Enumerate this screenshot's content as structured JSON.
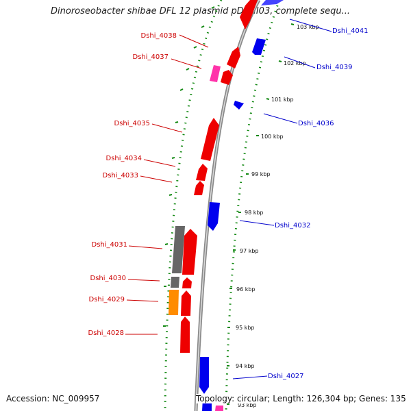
{
  "title": "Dinoroseobacter shibae DFL 12 plasmid pDSHI03, complete sequ...",
  "footer": {
    "accession": "Accession: NC_009957",
    "topology": "Topology: circular; Length: 126,304 bp; Genes: 135"
  },
  "colors": {
    "forward_gene": "#ee0000",
    "reverse_gene": "#0000ee",
    "pseudogene": "#666666",
    "rna_gene": "#ff33aa",
    "other_gene": "#ff8c00",
    "backbone": "#999999",
    "ruler": "#118811",
    "forward_label": "#cc0000",
    "reverse_label": "#0000cc"
  },
  "kbp_ticks": [
    "103 kbp",
    "102 kbp",
    "101 kbp",
    "100 kbp",
    "99 kbp",
    "98 kbp",
    "97 kbp",
    "96 kbp",
    "95 kbp",
    "94 kbp",
    "93 kbp"
  ],
  "gene_labels": [
    {
      "text": "Dshi_4041",
      "strand": "reverse"
    },
    {
      "text": "Dshi_4038",
      "strand": "forward"
    },
    {
      "text": "Dshi_4037",
      "strand": "forward"
    },
    {
      "text": "Dshi_4039",
      "strand": "reverse"
    },
    {
      "text": "Dshi_4036",
      "strand": "reverse"
    },
    {
      "text": "Dshi_4035",
      "strand": "forward"
    },
    {
      "text": "Dshi_4034",
      "strand": "forward"
    },
    {
      "text": "Dshi_4033",
      "strand": "forward"
    },
    {
      "text": "Dshi_4032",
      "strand": "reverse"
    },
    {
      "text": "Dshi_4031",
      "strand": "forward"
    },
    {
      "text": "Dshi_4030",
      "strand": "forward"
    },
    {
      "text": "Dshi_4029",
      "strand": "forward"
    },
    {
      "text": "Dshi_4028",
      "strand": "forward"
    },
    {
      "text": "Dshi_4027",
      "strand": "reverse"
    }
  ]
}
